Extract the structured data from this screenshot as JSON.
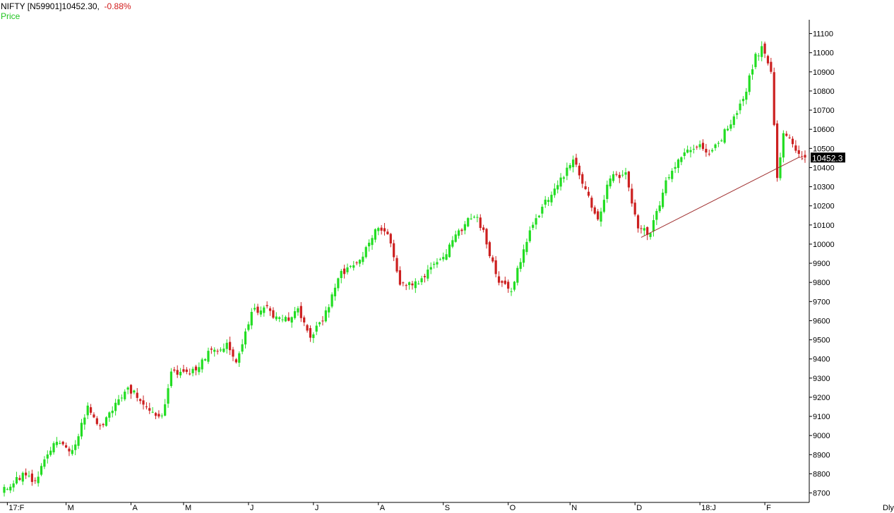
{
  "header": {
    "symbol": "NIFTY [N59901]",
    "last": "10452.30,",
    "change": "-0.88%",
    "series_label": "Price"
  },
  "chart_data": {
    "type": "candlestick",
    "period_label": "Dly",
    "last_price_tag": "10452.3",
    "ylim": [
      8680,
      11150
    ],
    "y_ticks": [
      8700,
      8800,
      8900,
      9000,
      9100,
      9200,
      9300,
      9400,
      9500,
      9600,
      9700,
      9800,
      9900,
      10000,
      10100,
      10200,
      10300,
      10400,
      10500,
      10600,
      10700,
      10800,
      10900,
      11000,
      11100
    ],
    "x_ticks": [
      {
        "label": "17:F",
        "day": 1
      },
      {
        "label": "M",
        "day": 20
      },
      {
        "label": "A",
        "day": 41
      },
      {
        "label": "M",
        "day": 58
      },
      {
        "label": "J",
        "day": 79
      },
      {
        "label": "J",
        "day": 100
      },
      {
        "label": "A",
        "day": 121
      },
      {
        "label": "S",
        "day": 142
      },
      {
        "label": "O",
        "day": 163
      },
      {
        "label": "N",
        "day": 183
      },
      {
        "label": "D",
        "day": 204
      },
      {
        "label": "18:J",
        "day": 225
      },
      {
        "label": "F",
        "day": 246
      }
    ],
    "anchors": [
      [
        0,
        8720
      ],
      [
        6,
        8790
      ],
      [
        10,
        8760
      ],
      [
        16,
        8960
      ],
      [
        22,
        8920
      ],
      [
        27,
        9150
      ],
      [
        31,
        9050
      ],
      [
        40,
        9250
      ],
      [
        47,
        9140
      ],
      [
        51,
        9100
      ],
      [
        54,
        9330
      ],
      [
        60,
        9320
      ],
      [
        66,
        9430
      ],
      [
        72,
        9480
      ],
      [
        75,
        9380
      ],
      [
        80,
        9650
      ],
      [
        85,
        9660
      ],
      [
        90,
        9590
      ],
      [
        95,
        9650
      ],
      [
        99,
        9510
      ],
      [
        104,
        9640
      ],
      [
        109,
        9850
      ],
      [
        114,
        9890
      ],
      [
        118,
        10010
      ],
      [
        121,
        10100
      ],
      [
        125,
        10020
      ],
      [
        128,
        9790
      ],
      [
        133,
        9790
      ],
      [
        137,
        9860
      ],
      [
        142,
        9940
      ],
      [
        147,
        10060
      ],
      [
        152,
        10160
      ],
      [
        155,
        10060
      ],
      [
        160,
        9790
      ],
      [
        164,
        9760
      ],
      [
        170,
        10070
      ],
      [
        175,
        10220
      ],
      [
        180,
        10340
      ],
      [
        184,
        10440
      ],
      [
        188,
        10280
      ],
      [
        192,
        10130
      ],
      [
        196,
        10360
      ],
      [
        201,
        10360
      ],
      [
        205,
        10080
      ],
      [
        209,
        10060
      ],
      [
        214,
        10320
      ],
      [
        219,
        10460
      ],
      [
        224,
        10520
      ],
      [
        229,
        10480
      ],
      [
        234,
        10610
      ],
      [
        239,
        10750
      ],
      [
        243,
        10980
      ],
      [
        245,
        11020
      ],
      [
        248,
        10900
      ],
      [
        250,
        10350
      ],
      [
        252,
        10580
      ],
      [
        256,
        10500
      ],
      [
        259,
        10452.3
      ]
    ],
    "trendline": [
      [
        206,
        10035
      ],
      [
        259,
        10440
      ]
    ],
    "colors": {
      "up": "#22dd22",
      "down": "#cc2020",
      "trendline": "#a03030",
      "axis": "#000000"
    }
  }
}
